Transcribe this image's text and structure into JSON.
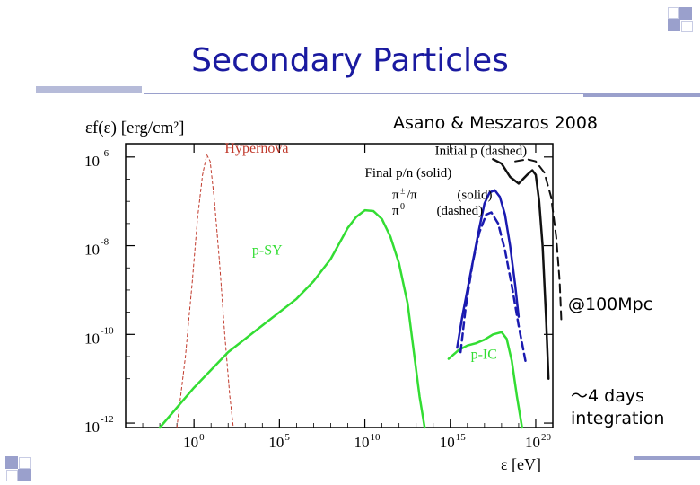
{
  "slide": {
    "title": "Secondary Particles",
    "citation": "Asano & Meszaros 2008",
    "distance_note": "@100Mpc",
    "duration_note_line1": "～4 days",
    "duration_note_line2": "integration",
    "accent_color": "#1a1aa0",
    "deco_color": "#9aa0cc"
  },
  "chart_data": {
    "type": "line",
    "title": "",
    "ylabel": "εf(ε) [erg/cm²]",
    "xlabel": "ε [eV]",
    "x_scale": "log",
    "y_scale": "log",
    "xlim_log10": [
      -4,
      21
    ],
    "ylim_log10": [
      -12.1,
      -5.7
    ],
    "x_ticks": [
      {
        "log": 0,
        "base": "10",
        "exp": "0"
      },
      {
        "log": 5,
        "base": "10",
        "exp": "5"
      },
      {
        "log": 10,
        "base": "10",
        "exp": "10"
      },
      {
        "log": 15,
        "base": "10",
        "exp": "15"
      },
      {
        "log": 20,
        "base": "10",
        "exp": "20"
      }
    ],
    "y_ticks": [
      {
        "log": -6,
        "base": "10",
        "exp": "-6"
      },
      {
        "log": -8,
        "base": "10",
        "exp": "-8"
      },
      {
        "log": -10,
        "base": "10",
        "exp": "-10"
      },
      {
        "log": -12,
        "base": "10",
        "exp": "-12"
      }
    ],
    "series": [
      {
        "name": "Hypernova",
        "label": "Hypernova",
        "color": "#c0392b",
        "dash": "3,3",
        "width": 1,
        "points": [
          [
            -1.0,
            -12.1
          ],
          [
            -0.5,
            -10.5
          ],
          [
            -0.1,
            -8.8
          ],
          [
            0.2,
            -7.4
          ],
          [
            0.5,
            -6.4
          ],
          [
            0.75,
            -5.95
          ],
          [
            0.95,
            -6.1
          ],
          [
            1.2,
            -7.0
          ],
          [
            1.5,
            -8.4
          ],
          [
            1.8,
            -10.0
          ],
          [
            2.1,
            -11.4
          ],
          [
            2.3,
            -12.1
          ]
        ],
        "label_pos": [
          1.8,
          -5.9
        ]
      },
      {
        "name": "p-SY",
        "label": "p-SY",
        "color": "#33dd33",
        "dash": "",
        "width": 2.5,
        "points": [
          [
            -2.0,
            -12.1
          ],
          [
            0,
            -11.2
          ],
          [
            2,
            -10.4
          ],
          [
            4,
            -9.8
          ],
          [
            6,
            -9.2
          ],
          [
            7,
            -8.8
          ],
          [
            8,
            -8.3
          ],
          [
            9,
            -7.6
          ],
          [
            9.5,
            -7.35
          ],
          [
            10,
            -7.2
          ],
          [
            10.5,
            -7.22
          ],
          [
            11,
            -7.4
          ],
          [
            11.5,
            -7.8
          ],
          [
            12,
            -8.4
          ],
          [
            12.5,
            -9.3
          ],
          [
            12.9,
            -10.5
          ],
          [
            13.2,
            -11.4
          ],
          [
            13.5,
            -12.1
          ]
        ],
        "label_pos": [
          3.4,
          -8.2
        ]
      },
      {
        "name": "p-IC",
        "label": "p-IC",
        "color": "#33dd33",
        "dash": "",
        "width": 2.5,
        "points": [
          [
            14.9,
            -10.55
          ],
          [
            15.5,
            -10.35
          ],
          [
            16,
            -10.25
          ],
          [
            16.5,
            -10.2
          ],
          [
            17,
            -10.12
          ],
          [
            17.5,
            -10.0
          ],
          [
            18,
            -9.95
          ],
          [
            18.3,
            -10.1
          ],
          [
            18.6,
            -10.6
          ],
          [
            18.9,
            -11.4
          ],
          [
            19.2,
            -12.1
          ]
        ],
        "label_pos": [
          16.2,
          -10.55
        ]
      },
      {
        "name": "π±/π (solid)",
        "label": "",
        "color": "#1a1ab0",
        "dash": "",
        "width": 2.5,
        "points": [
          [
            15.4,
            -10.3
          ],
          [
            15.7,
            -9.6
          ],
          [
            16,
            -9.0
          ],
          [
            16.4,
            -8.2
          ],
          [
            16.7,
            -7.6
          ],
          [
            17.0,
            -7.05
          ],
          [
            17.3,
            -6.8
          ],
          [
            17.6,
            -6.75
          ],
          [
            17.9,
            -6.9
          ],
          [
            18.2,
            -7.3
          ],
          [
            18.5,
            -8.0
          ],
          [
            18.8,
            -8.9
          ],
          [
            19.0,
            -9.6
          ]
        ],
        "label_pos": [
          0,
          0
        ]
      },
      {
        "name": "π0 (dashed)",
        "label": "",
        "color": "#1a1ab0",
        "dash": "8,5",
        "width": 2.5,
        "points": [
          [
            15.6,
            -10.4
          ],
          [
            15.9,
            -9.4
          ],
          [
            16.3,
            -8.4
          ],
          [
            16.7,
            -7.7
          ],
          [
            17.1,
            -7.3
          ],
          [
            17.4,
            -7.25
          ],
          [
            17.8,
            -7.5
          ],
          [
            18.2,
            -8.1
          ],
          [
            18.6,
            -8.9
          ],
          [
            19.0,
            -9.8
          ],
          [
            19.4,
            -10.6
          ]
        ],
        "label_pos": [
          0,
          0
        ]
      },
      {
        "name": "Final p/n (solid)",
        "label": "",
        "color": "#111111",
        "dash": "",
        "width": 2.5,
        "points": [
          [
            17.5,
            -6.05
          ],
          [
            18.0,
            -6.15
          ],
          [
            18.5,
            -6.45
          ],
          [
            19.0,
            -6.6
          ],
          [
            19.5,
            -6.4
          ],
          [
            19.8,
            -6.3
          ],
          [
            20.0,
            -6.4
          ],
          [
            20.2,
            -7.0
          ],
          [
            20.4,
            -8.0
          ],
          [
            20.6,
            -9.6
          ],
          [
            20.75,
            -11.0
          ]
        ],
        "label_pos": [
          0,
          0
        ]
      },
      {
        "name": "Initial p (dashed)",
        "label": "",
        "color": "#111111",
        "dash": "9,6",
        "width": 2,
        "points": [
          [
            18.8,
            -6.1
          ],
          [
            19.5,
            -6.05
          ],
          [
            20.0,
            -6.1
          ],
          [
            20.5,
            -6.35
          ],
          [
            20.9,
            -6.9
          ],
          [
            21.2,
            -7.8
          ],
          [
            21.4,
            -8.8
          ],
          [
            21.5,
            -9.7
          ]
        ],
        "label_pos": [
          0,
          0
        ]
      }
    ],
    "legend_texts": [
      {
        "text": "Initial p (dashed)",
        "pos": [
          14.1,
          -5.95
        ]
      },
      {
        "text": "Final p/n (solid)",
        "pos": [
          10.0,
          -6.45
        ]
      },
      {
        "text": "(solid)",
        "pos": [
          15.4,
          -6.95
        ]
      },
      {
        "text": "(dashed)",
        "pos": [
          14.2,
          -7.3
        ]
      }
    ],
    "legend_symbols": {
      "pion_charged": {
        "base": "π",
        "sup": "±",
        "tail": "/π",
        "pos": [
          11.6,
          -6.95
        ]
      },
      "pion_neutral": {
        "base": "π",
        "sup": "0",
        "pos": [
          11.6,
          -7.3
        ]
      }
    }
  }
}
